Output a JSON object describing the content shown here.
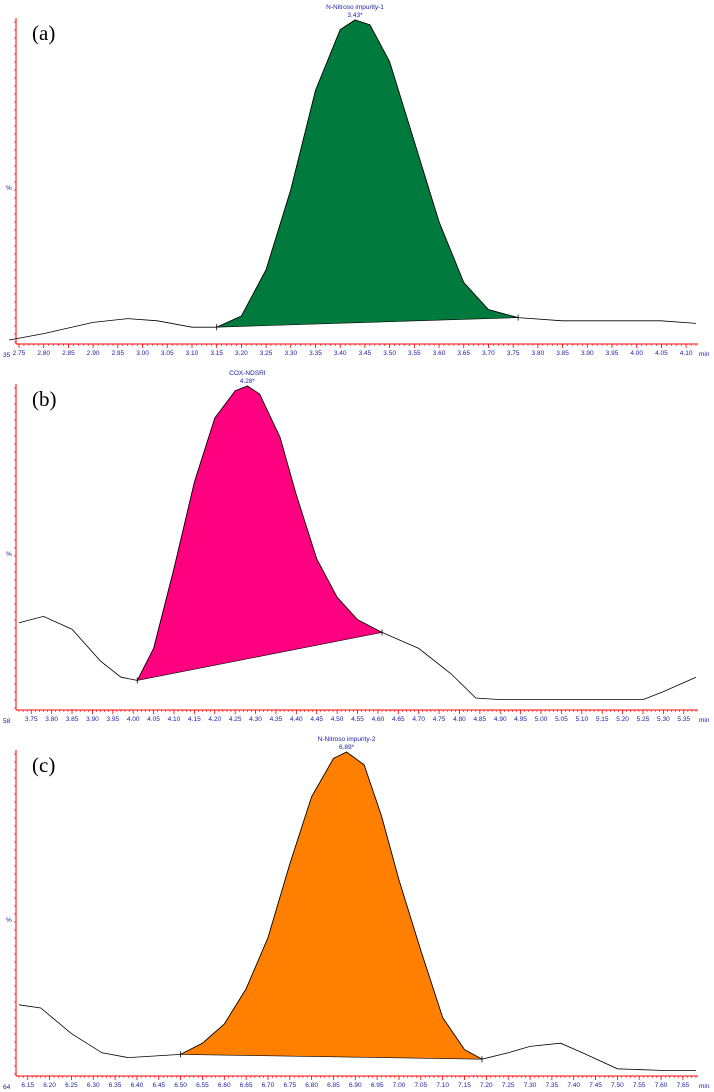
{
  "chart_data": [
    {
      "type": "line",
      "panel_label": "(a)",
      "y_axis_label": "%",
      "y_min_label": "35",
      "x_unit": "min",
      "peak_name": "N-Nitroso impurity-1",
      "peak_rt": "3.43*",
      "fill_color": "#007a3d",
      "xlim": [
        2.75,
        4.12
      ],
      "ticks": [
        "2.75",
        "2.80",
        "2.85",
        "2.90",
        "2.95",
        "3.00",
        "3.05",
        "3.10",
        "3.15",
        "3.20",
        "3.25",
        "3.30",
        "3.35",
        "3.40",
        "3.45",
        "3.50",
        "3.55",
        "3.60",
        "3.65",
        "3.70",
        "3.75",
        "3.80",
        "3.85",
        "3.90",
        "3.95",
        "4.00",
        "4.05",
        "4.10"
      ],
      "baseline_start": [
        3.15,
        0.04
      ],
      "baseline_end": [
        3.76,
        0.07
      ],
      "trace": [
        [
          2.73,
          0.0
        ],
        [
          2.8,
          0.02
        ],
        [
          2.9,
          0.055
        ],
        [
          2.97,
          0.067
        ],
        [
          3.03,
          0.06
        ],
        [
          3.1,
          0.04
        ],
        [
          3.15,
          0.04
        ],
        [
          3.2,
          0.075
        ],
        [
          3.25,
          0.22
        ],
        [
          3.3,
          0.47
        ],
        [
          3.35,
          0.78
        ],
        [
          3.4,
          0.97
        ],
        [
          3.43,
          1.0
        ],
        [
          3.46,
          0.985
        ],
        [
          3.5,
          0.87
        ],
        [
          3.55,
          0.62
        ],
        [
          3.6,
          0.37
        ],
        [
          3.65,
          0.18
        ],
        [
          3.7,
          0.095
        ],
        [
          3.76,
          0.07
        ],
        [
          3.85,
          0.06
        ],
        [
          3.95,
          0.06
        ],
        [
          4.05,
          0.06
        ],
        [
          4.12,
          0.052
        ]
      ]
    },
    {
      "type": "line",
      "panel_label": "(b)",
      "y_axis_label": "%",
      "y_min_label": "58",
      "x_unit": "min",
      "peak_name": "COX-NDSRI",
      "peak_rt": "4.28*",
      "fill_color": "#ff0080",
      "xlim": [
        3.72,
        5.38
      ],
      "ticks": [
        "3.75",
        "3.80",
        "3.85",
        "3.90",
        "3.95",
        "4.00",
        "4.05",
        "4.10",
        "4.15",
        "4.20",
        "4.25",
        "4.30",
        "4.35",
        "4.40",
        "4.45",
        "4.50",
        "4.55",
        "4.60",
        "4.65",
        "4.70",
        "4.75",
        "4.80",
        "4.85",
        "4.90",
        "4.95",
        "5.00",
        "5.05",
        "5.10",
        "5.15",
        "5.20",
        "5.25",
        "5.30",
        "5.35"
      ],
      "baseline_start": [
        4.01,
        0.08
      ],
      "baseline_end": [
        4.61,
        0.23
      ],
      "trace": [
        [
          3.72,
          0.26
        ],
        [
          3.78,
          0.28
        ],
        [
          3.85,
          0.24
        ],
        [
          3.92,
          0.14
        ],
        [
          3.97,
          0.09
        ],
        [
          4.01,
          0.08
        ],
        [
          4.05,
          0.18
        ],
        [
          4.1,
          0.43
        ],
        [
          4.15,
          0.7
        ],
        [
          4.2,
          0.9
        ],
        [
          4.25,
          0.985
        ],
        [
          4.28,
          1.0
        ],
        [
          4.31,
          0.975
        ],
        [
          4.36,
          0.84
        ],
        [
          4.4,
          0.66
        ],
        [
          4.45,
          0.46
        ],
        [
          4.5,
          0.34
        ],
        [
          4.55,
          0.27
        ],
        [
          4.61,
          0.23
        ],
        [
          4.7,
          0.18
        ],
        [
          4.78,
          0.1
        ],
        [
          4.84,
          0.025
        ],
        [
          4.9,
          0.02
        ],
        [
          5.0,
          0.02
        ],
        [
          5.1,
          0.02
        ],
        [
          5.2,
          0.02
        ],
        [
          5.25,
          0.02
        ],
        [
          5.3,
          0.045
        ],
        [
          5.38,
          0.09
        ]
      ]
    },
    {
      "type": "line",
      "panel_label": "(c)",
      "y_axis_label": "%",
      "y_min_label": "64",
      "x_unit": "min",
      "peak_name": "N-Nitroso impurity-2",
      "peak_rt": "6.89*",
      "fill_color": "#ff8000",
      "xlim": [
        6.13,
        7.68
      ],
      "ticks": [
        "6.15",
        "6.20",
        "6.25",
        "6.30",
        "6.35",
        "6.40",
        "6.45",
        "6.50",
        "6.55",
        "6.60",
        "6.65",
        "6.70",
        "6.75",
        "6.80",
        "6.85",
        "6.90",
        "6.95",
        "7.00",
        "7.05",
        "7.10",
        "7.15",
        "7.20",
        "7.25",
        "7.30",
        "7.35",
        "7.40",
        "7.45",
        "7.50",
        "7.55",
        "7.60",
        "7.65"
      ],
      "baseline_start": [
        6.5,
        0.055
      ],
      "baseline_end": [
        7.19,
        0.04
      ],
      "trace": [
        [
          6.13,
          0.21
        ],
        [
          6.18,
          0.2
        ],
        [
          6.25,
          0.12
        ],
        [
          6.32,
          0.06
        ],
        [
          6.38,
          0.045
        ],
        [
          6.44,
          0.05
        ],
        [
          6.5,
          0.055
        ],
        [
          6.55,
          0.09
        ],
        [
          6.6,
          0.15
        ],
        [
          6.65,
          0.26
        ],
        [
          6.7,
          0.42
        ],
        [
          6.75,
          0.65
        ],
        [
          6.8,
          0.86
        ],
        [
          6.85,
          0.98
        ],
        [
          6.88,
          1.0
        ],
        [
          6.92,
          0.96
        ],
        [
          6.96,
          0.8
        ],
        [
          7.0,
          0.6
        ],
        [
          7.05,
          0.38
        ],
        [
          7.1,
          0.17
        ],
        [
          7.15,
          0.07
        ],
        [
          7.19,
          0.04
        ],
        [
          7.25,
          0.06
        ],
        [
          7.3,
          0.08
        ],
        [
          7.37,
          0.09
        ],
        [
          7.42,
          0.06
        ],
        [
          7.5,
          0.01
        ],
        [
          7.6,
          0.005
        ],
        [
          7.68,
          0.005
        ]
      ]
    }
  ]
}
